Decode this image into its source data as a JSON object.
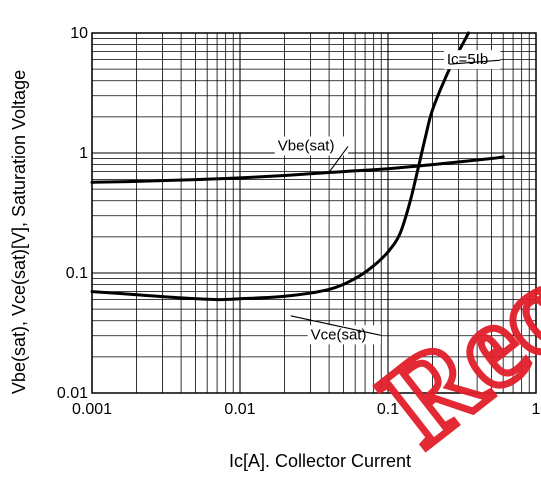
{
  "chart_data": {
    "type": "line",
    "xlabel": "Ic[A]. Collector Current",
    "ylabel": "Vbe(sat), Vce(sat)[V], Saturation Voltage",
    "xscale": "log",
    "yscale": "log",
    "xlim": [
      0.001,
      1
    ],
    "ylim": [
      0.01,
      10
    ],
    "grid": true,
    "x_ticks": [
      {
        "value": 0.001,
        "label": "0.001"
      },
      {
        "value": 0.01,
        "label": "0.01"
      },
      {
        "value": 0.1,
        "label": "0.1"
      },
      {
        "value": 1,
        "label": "1"
      }
    ],
    "y_ticks": [
      {
        "value": 0.01,
        "label": "0.01"
      },
      {
        "value": 0.1,
        "label": "0.1"
      },
      {
        "value": 1,
        "label": "1"
      },
      {
        "value": 10,
        "label": "10"
      }
    ],
    "series": [
      {
        "name": "Vbe(sat)",
        "x": [
          0.001,
          0.002,
          0.005,
          0.01,
          0.02,
          0.05,
          0.1,
          0.2,
          0.5,
          0.6
        ],
        "y": [
          0.57,
          0.58,
          0.6,
          0.62,
          0.65,
          0.7,
          0.74,
          0.8,
          0.9,
          0.93
        ]
      },
      {
        "name": "Vce(sat)",
        "x": [
          0.001,
          0.002,
          0.004,
          0.007,
          0.01,
          0.02,
          0.04,
          0.06,
          0.08,
          0.1,
          0.12,
          0.14,
          0.16,
          0.18,
          0.2,
          0.25,
          0.3,
          0.35
        ],
        "y": [
          0.07,
          0.066,
          0.062,
          0.06,
          0.061,
          0.064,
          0.073,
          0.09,
          0.115,
          0.15,
          0.21,
          0.38,
          0.75,
          1.4,
          2.3,
          4.5,
          7.0,
          10
        ]
      }
    ],
    "annotations": [
      {
        "text": "Ic=5Ib",
        "x": 0.25,
        "y": 5.5,
        "target_x": 0.26,
        "target_y": 5.5
      },
      {
        "text": "Vbe(sat)",
        "x": 0.018,
        "y": 1.05,
        "target_x": 0.04,
        "target_y": 0.69
      },
      {
        "text": "Vce(sat)",
        "x": 0.03,
        "y": 0.028,
        "target_x": 0.022,
        "target_y": 0.044
      }
    ]
  },
  "watermark": {
    "text": "Rec",
    "color": "#e21f2a"
  }
}
